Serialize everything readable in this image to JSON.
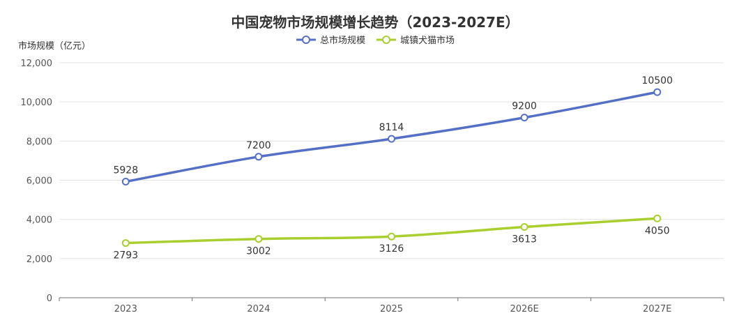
{
  "chart_data": {
    "type": "line",
    "title": "中国宠物市场规模增长趋势（2023-2027E）",
    "ylabel": "市场规模（亿元）",
    "xlabel": "",
    "categories": [
      "2023",
      "2024",
      "2025",
      "2026E",
      "2027E"
    ],
    "ylim": [
      0,
      12000
    ],
    "yticks": [
      0,
      2000,
      4000,
      6000,
      8000,
      10000,
      12000
    ],
    "ytick_labels": [
      "0",
      "2,000",
      "4,000",
      "6,000",
      "8,000",
      "10,000",
      "12,000"
    ],
    "grid": true,
    "legend_position": "top-center",
    "series": [
      {
        "name": "总市场规模",
        "color": "#5470c6",
        "values": [
          5928,
          7200,
          8114,
          9200,
          10500
        ],
        "labels": [
          "5928",
          "7200",
          "8114",
          "9200",
          "10500"
        ],
        "label_position": "above"
      },
      {
        "name": "城镇犬猫市场",
        "color": "#a8cf2e",
        "values": [
          2793,
          3002,
          3126,
          3613,
          4050
        ],
        "labels": [
          "2793",
          "3002",
          "3126",
          "3613",
          "4050"
        ],
        "label_position": "below"
      }
    ]
  }
}
